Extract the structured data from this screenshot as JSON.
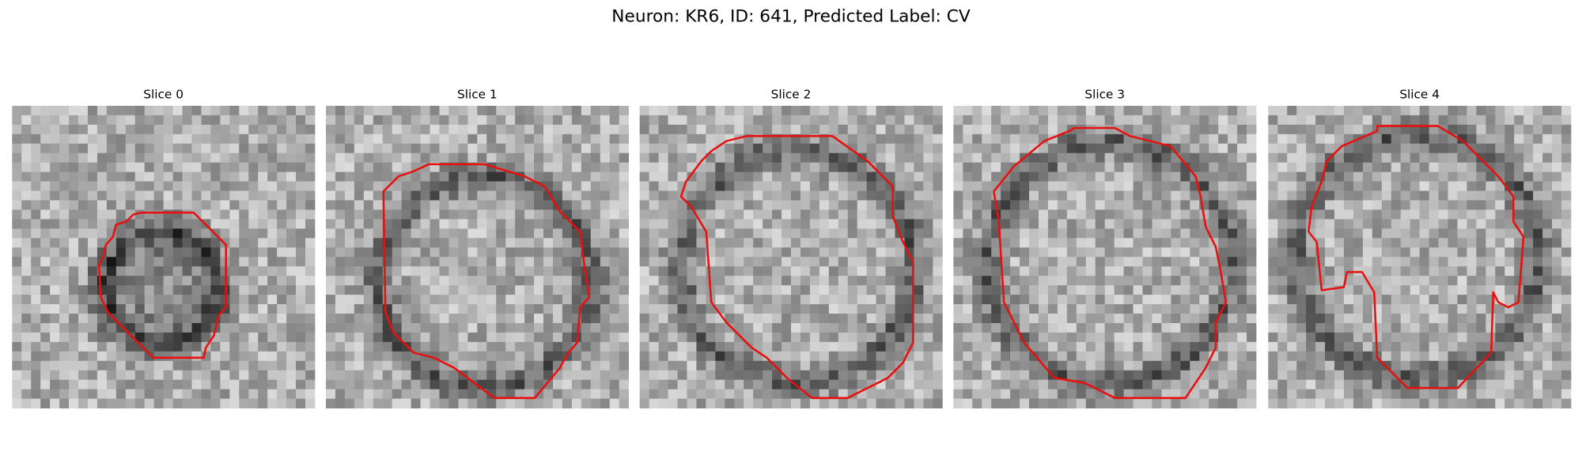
{
  "figure": {
    "title": "Neuron: KR6, ID: 641, Predicted Label: CV",
    "panels": [
      {
        "title": "Slice 0"
      },
      {
        "title": "Slice 1"
      },
      {
        "title": "Slice 2"
      },
      {
        "title": "Slice 3"
      },
      {
        "title": "Slice 4"
      }
    ]
  }
}
